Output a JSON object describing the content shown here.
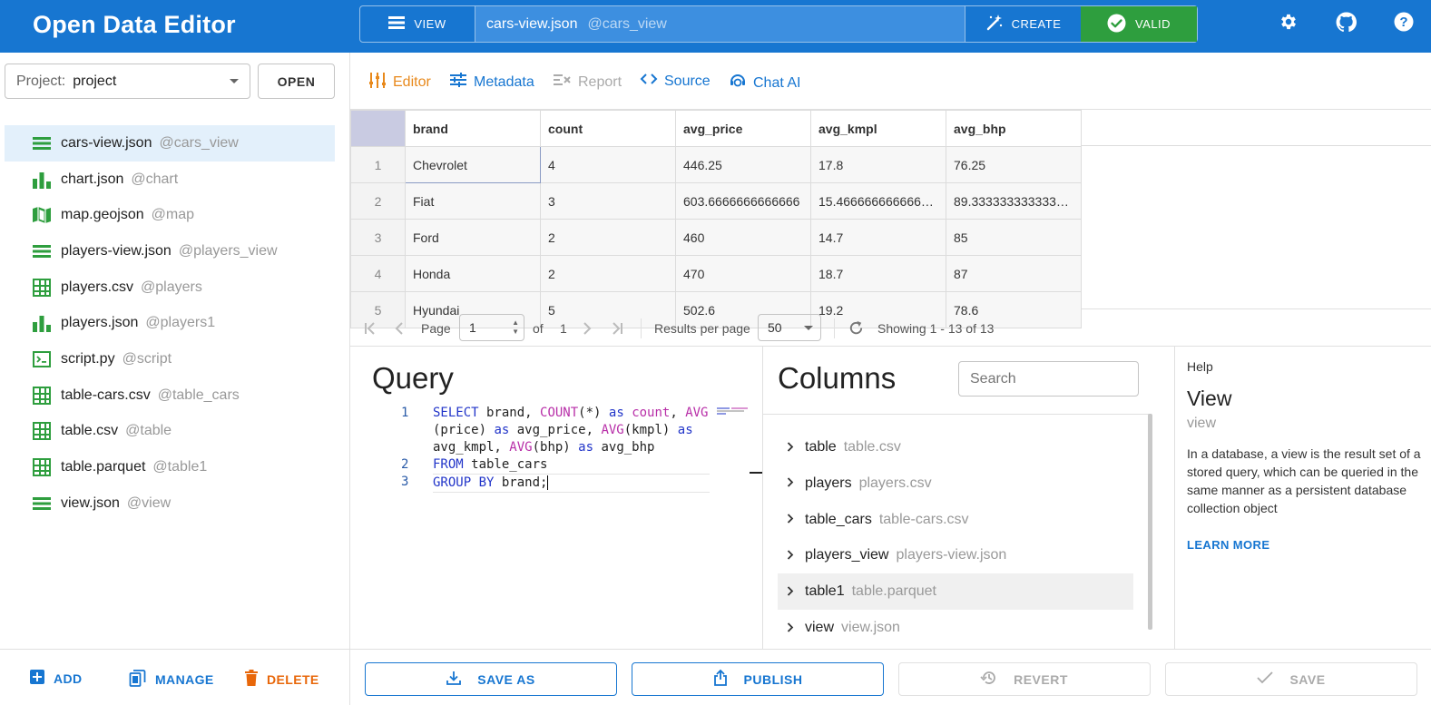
{
  "app": {
    "title": "Open Data Editor"
  },
  "command_bar": {
    "view_label": "VIEW",
    "current_file": "cars-view.json",
    "current_alias": "@cars_view",
    "create_label": "CREATE",
    "valid_label": "VALID",
    "accent_valid": "#2e9e3e",
    "accent_brand": "#1776d1"
  },
  "top_icons": [
    "gear-icon",
    "github-icon",
    "help-icon"
  ],
  "project": {
    "label": "Project:",
    "value": "project",
    "open_label": "OPEN"
  },
  "files": [
    {
      "name": "cars-view.json",
      "alias": "@cars_view",
      "icon": "view-icon",
      "active": true
    },
    {
      "name": "chart.json",
      "alias": "@chart",
      "icon": "chart-icon"
    },
    {
      "name": "map.geojson",
      "alias": "@map",
      "icon": "map-icon"
    },
    {
      "name": "players-view.json",
      "alias": "@players_view",
      "icon": "view-icon"
    },
    {
      "name": "players.csv",
      "alias": "@players",
      "icon": "table-icon"
    },
    {
      "name": "players.json",
      "alias": "@players1",
      "icon": "chart-icon"
    },
    {
      "name": "script.py",
      "alias": "@script",
      "icon": "script-icon"
    },
    {
      "name": "table-cars.csv",
      "alias": "@table_cars",
      "icon": "table-icon"
    },
    {
      "name": "table.csv",
      "alias": "@table",
      "icon": "table-icon"
    },
    {
      "name": "table.parquet",
      "alias": "@table1",
      "icon": "table-icon"
    },
    {
      "name": "view.json",
      "alias": "@view",
      "icon": "view-icon"
    }
  ],
  "sidebar_footer": {
    "add": "ADD",
    "manage": "MANAGE",
    "delete": "DELETE"
  },
  "tabs": {
    "editor": "Editor",
    "metadata": "Metadata",
    "report": "Report",
    "source": "Source",
    "chat": "Chat AI"
  },
  "grid": {
    "columns": [
      "brand",
      "count",
      "avg_price",
      "avg_kmpl",
      "avg_bhp"
    ],
    "rows": [
      [
        "1",
        "Chevrolet",
        "4",
        "446.25",
        "17.8",
        "76.25"
      ],
      [
        "2",
        "Fiat",
        "3",
        "603.6666666666666",
        "15.466666666666…",
        "89.333333333333…"
      ],
      [
        "3",
        "Ford",
        "2",
        "460",
        "14.7",
        "85"
      ],
      [
        "4",
        "Honda",
        "2",
        "470",
        "18.7",
        "87"
      ],
      [
        "5",
        "Hyundai",
        "5",
        "502.6",
        "19.2",
        "78.6"
      ]
    ]
  },
  "pager": {
    "page_label": "Page",
    "page_value": "1",
    "of_label": "of",
    "total_pages": "1",
    "per_page_label": "Results per page",
    "per_page_value": "50",
    "showing": "Showing 1 - 13 of 13"
  },
  "query": {
    "title": "Query",
    "lines": [
      {
        "n": "1",
        "text": "SELECT brand, COUNT(*) as count, AVG"
      },
      {
        "n": "",
        "text": "(price) as avg_price, AVG(kmpl) as"
      },
      {
        "n": "",
        "text": "avg_kmpl, AVG(bhp) as avg_bhp"
      },
      {
        "n": "2",
        "text": "FROM table_cars"
      },
      {
        "n": "3",
        "text": "GROUP BY brand;"
      }
    ]
  },
  "columns_panel": {
    "title": "Columns",
    "search_placeholder": "Search",
    "items": [
      {
        "name": "table",
        "file": "table.csv"
      },
      {
        "name": "players",
        "file": "players.csv"
      },
      {
        "name": "table_cars",
        "file": "table-cars.csv"
      },
      {
        "name": "players_view",
        "file": "players-view.json"
      },
      {
        "name": "table1",
        "file": "table.parquet"
      },
      {
        "name": "view",
        "file": "view.json"
      }
    ]
  },
  "help": {
    "label": "Help",
    "title": "View",
    "subtitle": "view",
    "description": "In a database, a view is the result set of a stored query, which can be queried in the same manner as a persistent database collection object",
    "link": "LEARN MORE"
  },
  "actions": {
    "save_as": "SAVE AS",
    "publish": "PUBLISH",
    "revert": "REVERT",
    "save": "SAVE"
  }
}
